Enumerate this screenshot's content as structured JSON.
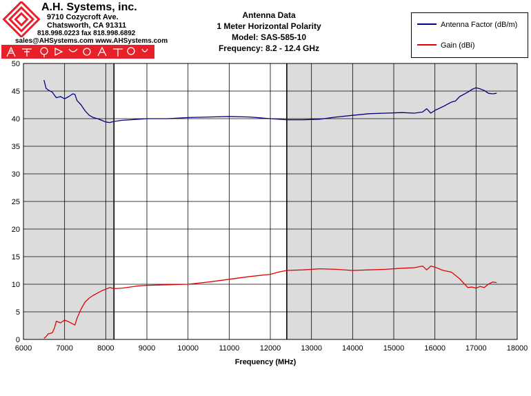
{
  "logo": {
    "company": "A.H. Systems, inc.",
    "address1": "9710 Cozycroft Ave.",
    "address2": "Chatsworth, CA 91311",
    "phone": "818.998.0223 fax 818.998.6892",
    "web": "sales@AHSystems.com www.AHSystems.com",
    "brand_color": "#e8202a"
  },
  "chart_data": {
    "type": "line",
    "title_lines": [
      "Antenna Data",
      "1 Meter Horizontal Polarity",
      "Model: SAS-585-10",
      "Frequency: 8.2 - 12.4 GHz"
    ],
    "xlabel": "Frequency (MHz)",
    "ylabel": "",
    "xlim": [
      6000,
      18000
    ],
    "ylim": [
      0,
      50
    ],
    "xticks": [
      "6000",
      "7000",
      "8000",
      "9000",
      "10000",
      "11000",
      "12000",
      "13000",
      "14000",
      "15000",
      "16000",
      "17000",
      "18000"
    ],
    "yticks": [
      "0",
      "5",
      "10",
      "15",
      "20",
      "25",
      "30",
      "35",
      "40",
      "45",
      "50"
    ],
    "grid": true,
    "legend": "top-right",
    "shaded_regions": [
      [
        6000,
        8200
      ],
      [
        12400,
        18000
      ]
    ],
    "band_markers": [
      8200,
      12400
    ],
    "series": [
      {
        "name": "Antenna Factor (dB/m)",
        "color": "#000080",
        "x": [
          6500,
          6550,
          6600,
          6700,
          6800,
          6900,
          7000,
          7100,
          7200,
          7250,
          7300,
          7400,
          7500,
          7600,
          7700,
          7800,
          7900,
          8000,
          8100,
          8200,
          8400,
          8600,
          8800,
          9000,
          9500,
          10000,
          10500,
          11000,
          11500,
          12000,
          12400,
          12800,
          13200,
          13600,
          14000,
          14400,
          14800,
          15200,
          15500,
          15700,
          15800,
          15900,
          16000,
          16200,
          16400,
          16500,
          16600,
          16800,
          16900,
          17000,
          17100,
          17200,
          17300,
          17400,
          17500
        ],
        "y": [
          47,
          45.5,
          45.2,
          44.8,
          43.8,
          44.0,
          43.6,
          44.0,
          44.5,
          44.4,
          43.3,
          42.5,
          41.4,
          40.6,
          40.2,
          40.0,
          39.7,
          39.4,
          39.3,
          39.5,
          39.7,
          39.8,
          39.9,
          40.0,
          40.0,
          40.2,
          40.3,
          40.4,
          40.3,
          40.0,
          39.8,
          39.8,
          39.9,
          40.3,
          40.6,
          40.9,
          41.0,
          41.1,
          41.0,
          41.2,
          41.8,
          41.0,
          41.5,
          42.2,
          43.0,
          43.2,
          44.0,
          44.8,
          45.3,
          45.6,
          45.4,
          45.1,
          44.6,
          44.5,
          44.6
        ]
      },
      {
        "name": "Gain (dBi)",
        "color": "#e00000",
        "x": [
          6500,
          6550,
          6600,
          6700,
          6750,
          6800,
          6900,
          7000,
          7100,
          7200,
          7250,
          7300,
          7400,
          7500,
          7600,
          7700,
          7800,
          7900,
          8000,
          8100,
          8200,
          8400,
          8600,
          8800,
          9000,
          9500,
          10000,
          10500,
          11000,
          11500,
          12000,
          12200,
          12400,
          12800,
          13200,
          13600,
          14000,
          14400,
          14800,
          15200,
          15500,
          15700,
          15800,
          15900,
          16000,
          16200,
          16400,
          16600,
          16700,
          16800,
          16900,
          17000,
          17100,
          17200,
          17300,
          17400,
          17500
        ],
        "y": [
          0.2,
          0.5,
          1.0,
          1.2,
          2.0,
          3.3,
          3.0,
          3.5,
          3.2,
          2.8,
          2.6,
          3.8,
          5.5,
          6.8,
          7.5,
          8.0,
          8.4,
          8.8,
          9.1,
          9.4,
          9.2,
          9.3,
          9.5,
          9.7,
          9.8,
          9.9,
          10.0,
          10.4,
          10.9,
          11.4,
          11.8,
          12.2,
          12.5,
          12.6,
          12.8,
          12.7,
          12.5,
          12.6,
          12.7,
          12.9,
          13.0,
          13.3,
          12.6,
          13.3,
          13.1,
          12.5,
          12.2,
          11.0,
          10.2,
          9.4,
          9.5,
          9.3,
          9.6,
          9.4,
          10.0,
          10.4,
          10.3
        ]
      }
    ]
  }
}
